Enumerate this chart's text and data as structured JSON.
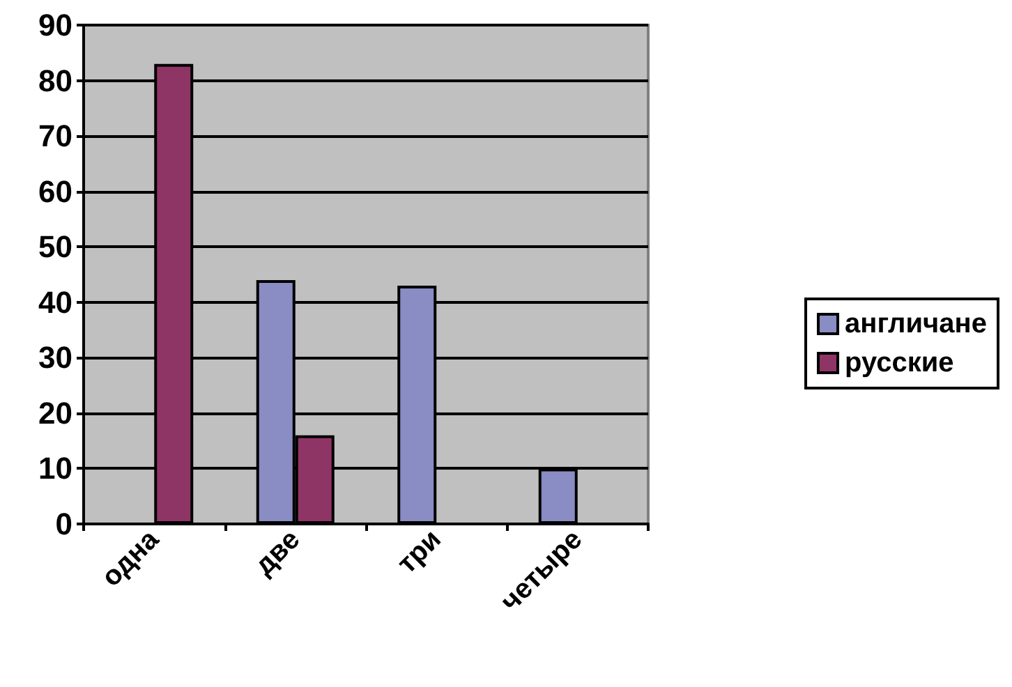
{
  "chart_data": {
    "type": "bar",
    "categories": [
      "одна",
      "две",
      "три",
      "четыре"
    ],
    "series": [
      {
        "name": "англичане",
        "color": "#8a8cc4",
        "values": [
          0,
          44,
          43,
          10
        ]
      },
      {
        "name": "русские",
        "color": "#8f3566",
        "values": [
          83,
          16,
          0,
          0
        ]
      }
    ],
    "ylim": [
      0,
      90
    ],
    "yticks": [
      0,
      10,
      20,
      30,
      40,
      50,
      60,
      70,
      80,
      90
    ],
    "grid": "y",
    "legend": "right"
  }
}
